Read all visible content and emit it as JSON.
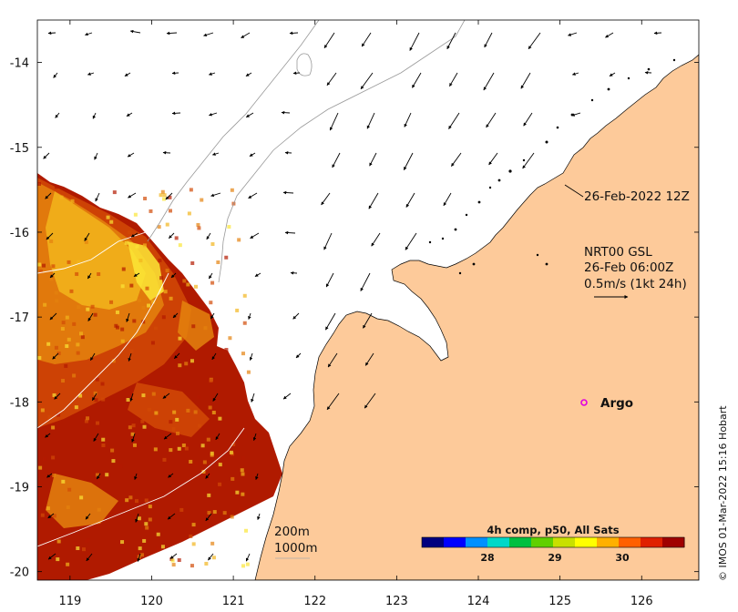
{
  "map": {
    "x_ticks": [
      "119",
      "120",
      "121",
      "122",
      "123",
      "124",
      "125",
      "126"
    ],
    "y_ticks": [
      "-14",
      "-15",
      "-16",
      "-17",
      "-18",
      "-19",
      "-20"
    ],
    "lon_range": [
      118.6,
      126.7
    ],
    "lat_range": [
      -20.1,
      -13.5
    ],
    "land_color": "#fdca9a",
    "sst_colors": [
      "#b31a00",
      "#d24a06",
      "#e4820e",
      "#f2b51c",
      "#fbe636"
    ]
  },
  "annotations": {
    "latest_pass": "26-Feb-2022 12Z",
    "product_line1": "NRT00 GSL",
    "product_line2": "26-Feb 06:00Z",
    "product_line3": "0.5m/s (1kt 24h)",
    "argo_label": "Argo",
    "contour_200": "200m",
    "contour_1000": "1000m"
  },
  "colorbar": {
    "title": "4h comp, p50, All Sats",
    "ticks": [
      "28",
      "29",
      "30"
    ],
    "colors": [
      "#00007f",
      "#0000ff",
      "#0090ff",
      "#00d8c8",
      "#00c040",
      "#60d000",
      "#c8e000",
      "#ffff00",
      "#ffb000",
      "#ff6000",
      "#e02000",
      "#a00000"
    ]
  },
  "credit": "© IMOS 01-Mar-2022 15:16 Hobart"
}
